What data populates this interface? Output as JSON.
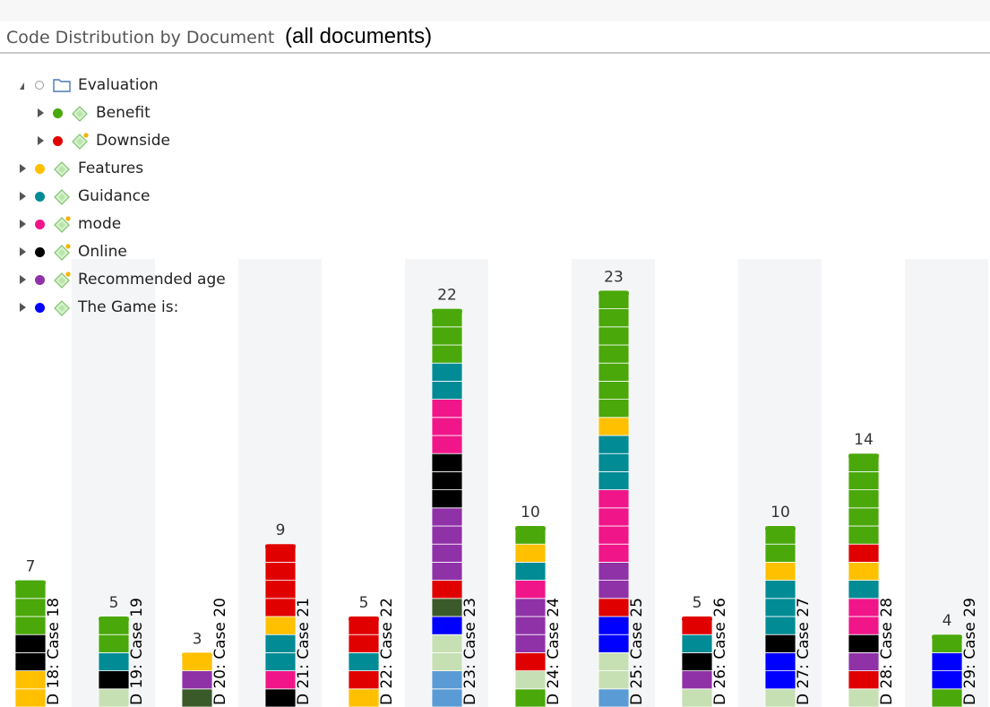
{
  "header": {
    "title": "Code Distribution by Document",
    "subtitle": "(all documents)"
  },
  "tree": [
    {
      "label": "Evaluation",
      "color": "",
      "icon": "folder-icon",
      "expanded": true,
      "level": 0
    },
    {
      "label": "Benefit",
      "color": "#4aa80a",
      "icon": "code-icon",
      "expanded": false,
      "level": 1
    },
    {
      "label": "Downside",
      "color": "#e00000",
      "icon": "code-icon",
      "expanded": false,
      "level": 1
    },
    {
      "label": "Features",
      "color": "#ffc000",
      "icon": "code-icon",
      "expanded": false,
      "level": 0
    },
    {
      "label": "Guidance",
      "color": "#008b95",
      "icon": "code-icon",
      "expanded": false,
      "level": 0
    },
    {
      "label": "mode",
      "color": "#f0168a",
      "icon": "code-icon",
      "expanded": false,
      "level": 0
    },
    {
      "label": "Online",
      "color": "#000000",
      "icon": "code-icon",
      "expanded": false,
      "level": 0
    },
    {
      "label": "Recommended age",
      "color": "#8f32a8",
      "icon": "code-icon",
      "expanded": false,
      "level": 0
    },
    {
      "label": "The Game is:",
      "color": "#0000ff",
      "icon": "code-icon",
      "expanded": false,
      "level": 0
    }
  ],
  "chart_data": {
    "type": "bar",
    "stacked": true,
    "categories": [
      "D 18: Case 18",
      "D 19: Case 19",
      "D 20: Case 20",
      "D 21: Case 21",
      "D 22: Case 22",
      "D 23: Case 23",
      "D 24: Case 24",
      "D 25: Case 25",
      "D 26: Case 26",
      "D 27: Case 27",
      "D 28: Case 28",
      "D 29: Case 29"
    ],
    "totals": [
      7,
      5,
      3,
      9,
      5,
      22,
      10,
      23,
      5,
      10,
      14,
      4
    ],
    "colors": {
      "Benefit": "#4aa80a",
      "Downside": "#e00000",
      "Features": "#ffc000",
      "Guidance": "#008b95",
      "mode": "#f0168a",
      "Online": "#000000",
      "Recommended age": "#8f32a8",
      "The Game is:": "#0000ff",
      "dark-green": "#3a5a2a",
      "light-green": "#c6e0b4",
      "light-blue": "#5b9bd5"
    },
    "stacks": [
      [
        [
          "Benefit",
          3
        ],
        [
          "Online",
          2
        ],
        [
          "Features",
          2
        ]
      ],
      [
        [
          "Benefit",
          2
        ],
        [
          "Guidance",
          1
        ],
        [
          "Online",
          1
        ],
        [
          "light-green",
          1
        ]
      ],
      [
        [
          "Features",
          1
        ],
        [
          "Recommended age",
          1
        ],
        [
          "dark-green",
          1
        ]
      ],
      [
        [
          "Downside",
          4
        ],
        [
          "Features",
          1
        ],
        [
          "Guidance",
          2
        ],
        [
          "mode",
          1
        ],
        [
          "Online",
          1
        ]
      ],
      [
        [
          "Downside",
          2
        ],
        [
          "Guidance",
          1
        ],
        [
          "Downside",
          1
        ],
        [
          "Features",
          1
        ]
      ],
      [
        [
          "Benefit",
          3
        ],
        [
          "Guidance",
          2
        ],
        [
          "mode",
          3
        ],
        [
          "Online",
          3
        ],
        [
          "Recommended age",
          4
        ],
        [
          "Downside",
          1
        ],
        [
          "dark-green",
          1
        ],
        [
          "The Game is:",
          1
        ],
        [
          "light-green",
          2
        ],
        [
          "light-blue",
          2
        ]
      ],
      [
        [
          "Benefit",
          1
        ],
        [
          "Features",
          1
        ],
        [
          "Guidance",
          1
        ],
        [
          "mode",
          1
        ],
        [
          "Recommended age",
          3
        ],
        [
          "Downside",
          1
        ],
        [
          "light-green",
          1
        ],
        [
          "Benefit",
          1
        ]
      ],
      [
        [
          "Benefit",
          7
        ],
        [
          "Features",
          1
        ],
        [
          "Guidance",
          3
        ],
        [
          "mode",
          4
        ],
        [
          "Recommended age",
          2
        ],
        [
          "Downside",
          1
        ],
        [
          "The Game is:",
          2
        ],
        [
          "light-green",
          2
        ],
        [
          "light-blue",
          1
        ]
      ],
      [
        [
          "Downside",
          1
        ],
        [
          "Guidance",
          1
        ],
        [
          "Online",
          1
        ],
        [
          "Recommended age",
          1
        ],
        [
          "light-green",
          1
        ]
      ],
      [
        [
          "Benefit",
          2
        ],
        [
          "Features",
          1
        ],
        [
          "Guidance",
          3
        ],
        [
          "Online",
          1
        ],
        [
          "The Game is:",
          2
        ],
        [
          "light-green",
          1
        ]
      ],
      [
        [
          "Benefit",
          5
        ],
        [
          "Downside",
          1
        ],
        [
          "Features",
          1
        ],
        [
          "Guidance",
          1
        ],
        [
          "mode",
          2
        ],
        [
          "Online",
          1
        ],
        [
          "Recommended age",
          1
        ],
        [
          "Downside",
          1
        ],
        [
          "light-green",
          1
        ]
      ],
      [
        [
          "Benefit",
          1
        ],
        [
          "The Game is:",
          2
        ],
        [
          "Benefit",
          1
        ]
      ]
    ]
  }
}
